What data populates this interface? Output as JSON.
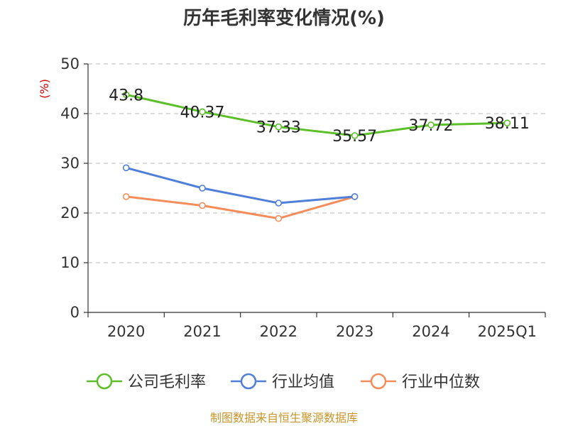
{
  "title": "历年毛利率变化情况(%)",
  "source": "制图数据来自恒生聚源数据库",
  "chart_data": {
    "type": "line",
    "title": "历年毛利率变化情况(%)",
    "ylabel": "(%)",
    "categories": [
      "2020",
      "2021",
      "2022",
      "2023",
      "2024",
      "2025Q1"
    ],
    "ylim": [
      0,
      50
    ],
    "yticks": [
      0,
      10,
      20,
      30,
      40,
      50
    ],
    "grid": true,
    "legend_position": "bottom",
    "series": [
      {
        "name": "公司毛利率",
        "values": [
          43.8,
          40.37,
          37.33,
          35.57,
          37.72,
          38.11
        ],
        "labels": [
          "43.8",
          "40.37",
          "37.33",
          "35.57",
          "37.72",
          "38.11"
        ],
        "color": "#5cbf2a"
      },
      {
        "name": "行业均值",
        "values": [
          29.1,
          25.0,
          22.0,
          23.3,
          null,
          null
        ],
        "color": "#4f7fd9"
      },
      {
        "name": "行业中位数",
        "values": [
          23.3,
          21.5,
          18.9,
          23.3,
          null,
          null
        ],
        "color": "#f58d5a"
      }
    ]
  }
}
